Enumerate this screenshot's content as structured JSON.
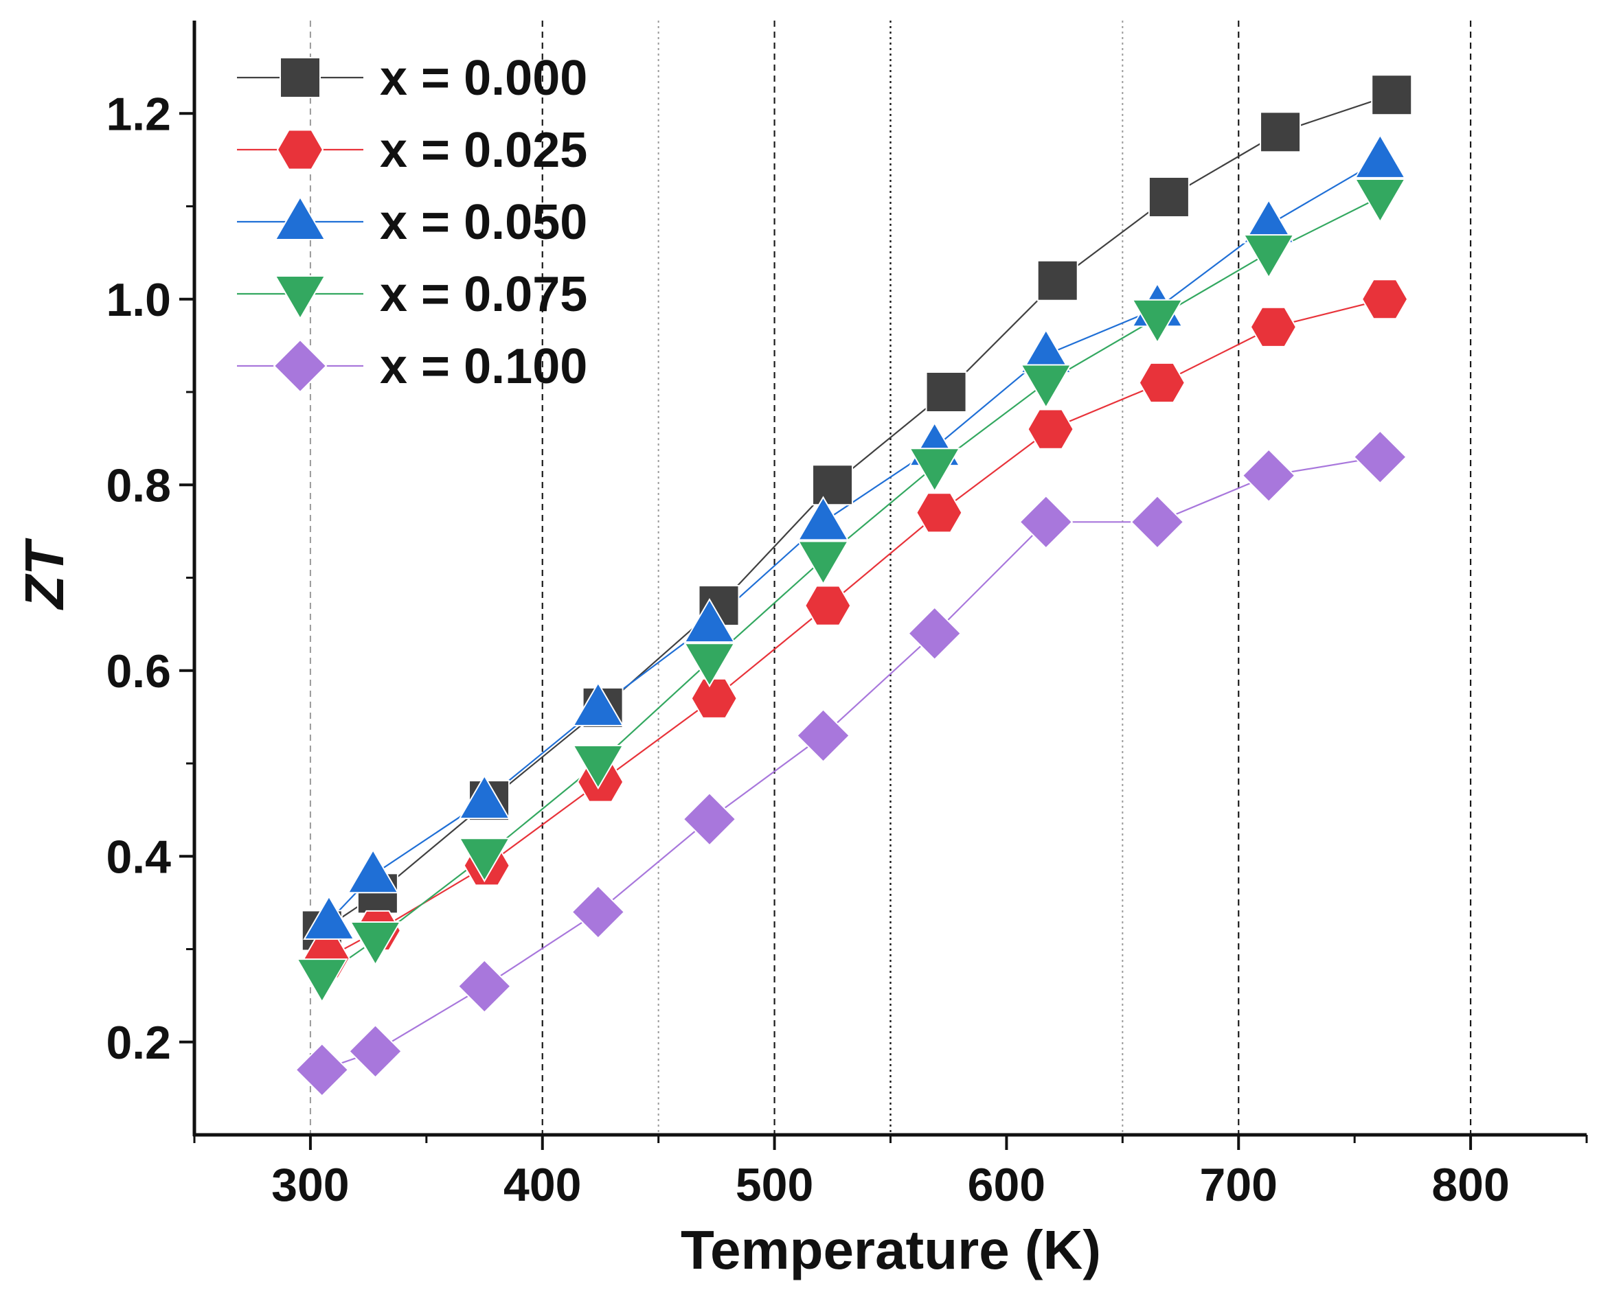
{
  "chart_data": {
    "type": "scatter",
    "title": "",
    "xlabel": "Temperature (K)",
    "ylabel": "ZT",
    "xlim": [
      250,
      850
    ],
    "ylim": [
      0.1,
      1.3
    ],
    "x_ticks": [
      300,
      400,
      500,
      600,
      700,
      800
    ],
    "x_tick_labels": [
      "300",
      "400",
      "500",
      "600",
      "700",
      "800"
    ],
    "y_ticks": [
      0.2,
      0.4,
      0.6,
      0.8,
      1.0,
      1.2
    ],
    "y_tick_labels": [
      "0.2",
      "0.4",
      "0.6",
      "0.8",
      "1.0",
      "1.2"
    ],
    "vertical_gridlines": [
      {
        "x": 300,
        "style": "dashed-light"
      },
      {
        "x": 400,
        "style": "dashed"
      },
      {
        "x": 450,
        "style": "dotted-light"
      },
      {
        "x": 500,
        "style": "dashed"
      },
      {
        "x": 550,
        "style": "dotted"
      },
      {
        "x": 650,
        "style": "dotted-light"
      },
      {
        "x": 700,
        "style": "dashed"
      },
      {
        "x": 800,
        "style": "dashed"
      }
    ],
    "legend_position": "top-left",
    "series": [
      {
        "name": "x = 0.000",
        "marker": "square",
        "color": "#404040",
        "x": [
          305,
          329,
          377,
          426,
          476,
          525,
          574,
          622,
          670,
          718,
          766
        ],
        "y": [
          0.32,
          0.36,
          0.46,
          0.56,
          0.67,
          0.8,
          0.9,
          1.02,
          1.11,
          1.18,
          1.22
        ]
      },
      {
        "name": "x = 0.025",
        "marker": "hexagon",
        "color": "#e8333a",
        "x": [
          307,
          329,
          376,
          425,
          474,
          523,
          571,
          619,
          667,
          715,
          763
        ],
        "y": [
          0.29,
          0.32,
          0.39,
          0.48,
          0.57,
          0.67,
          0.77,
          0.86,
          0.91,
          0.97,
          1.0
        ]
      },
      {
        "name": "x = 0.050",
        "marker": "triangle-up",
        "color": "#1f6fd6",
        "x": [
          308,
          327,
          375,
          424,
          472,
          521,
          569,
          617,
          665,
          713,
          761
        ],
        "y": [
          0.33,
          0.38,
          0.46,
          0.56,
          0.65,
          0.76,
          0.84,
          0.94,
          0.99,
          1.08,
          1.15
        ]
      },
      {
        "name": "x = 0.075",
        "marker": "triangle-down",
        "color": "#33a860",
        "x": [
          305,
          328,
          375,
          424,
          472,
          521,
          569,
          617,
          665,
          713,
          761
        ],
        "y": [
          0.27,
          0.31,
          0.4,
          0.5,
          0.61,
          0.72,
          0.82,
          0.91,
          0.98,
          1.05,
          1.11
        ]
      },
      {
        "name": "x = 0.100",
        "marker": "diamond",
        "color": "#a877dc",
        "x": [
          305,
          328,
          375,
          424,
          472,
          521,
          569,
          617,
          665,
          713,
          761
        ],
        "y": [
          0.17,
          0.19,
          0.26,
          0.34,
          0.44,
          0.53,
          0.64,
          0.76,
          0.76,
          0.81,
          0.83
        ]
      }
    ]
  }
}
